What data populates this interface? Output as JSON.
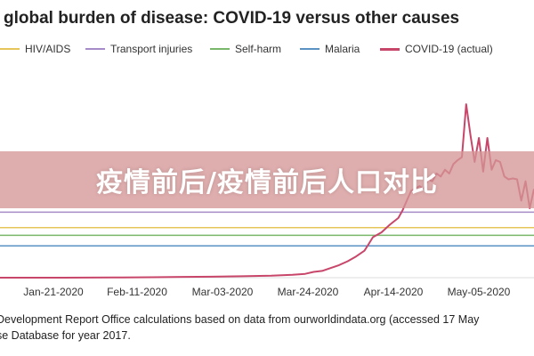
{
  "title": "global burden of disease: COVID-19 versus other causes",
  "legend": [
    {
      "label": "HIV/AIDS",
      "color": "#e6c55a"
    },
    {
      "label": "Transport injuries",
      "color": "#a58bc7"
    },
    {
      "label": "Self-harm",
      "color": "#79b86a"
    },
    {
      "label": "Malaria",
      "color": "#5b92c4"
    },
    {
      "label": "COVID-19 (actual)",
      "color": "#c8466a"
    }
  ],
  "x_ticks": [
    "Jan-21-2020",
    "Feb-11-2020",
    "Mar-03-2020",
    "Mar-24-2020",
    "Apr-14-2020",
    "May-05-2020"
  ],
  "source_lines": [
    "Development Report Office calculations based on data from ourworldindata.org (accessed 17 May",
    "se Database for year 2017."
  ],
  "banner_text": "疫情前后/疫情前后人口对比",
  "chart_data": {
    "type": "line",
    "title": "global burden of disease: COVID-19 versus other causes",
    "x_ticks": [
      "Jan-21-2020",
      "Feb-11-2020",
      "Mar-03-2020",
      "Mar-24-2020",
      "Apr-14-2020",
      "May-05-2020"
    ],
    "x_range_days_from_jan_21": [
      -29,
      97
    ],
    "ylim": [
      0,
      205
    ],
    "grid": false,
    "legend_position": "top",
    "reference_lines": [
      {
        "name": "Transport injuries",
        "value": 68,
        "color": "#a58bc7"
      },
      {
        "name": "HIV/AIDS",
        "value": 52,
        "color": "#e6c55a"
      },
      {
        "name": "Self-harm",
        "value": 44,
        "color": "#79b86a"
      },
      {
        "name": "Malaria",
        "value": 33,
        "color": "#5b92c4"
      }
    ],
    "series": [
      {
        "name": "COVID-19 (actual)",
        "color": "#c8466a",
        "points": [
          [
            -29,
            0
          ],
          [
            -14,
            0
          ],
          [
            0,
            0.3
          ],
          [
            7,
            0.5
          ],
          [
            14,
            0.8
          ],
          [
            21,
            1
          ],
          [
            28,
            1.5
          ],
          [
            35,
            2
          ],
          [
            40,
            3
          ],
          [
            43,
            4
          ],
          [
            45,
            6
          ],
          [
            47,
            7
          ],
          [
            49,
            10
          ],
          [
            51,
            13
          ],
          [
            53,
            17
          ],
          [
            55,
            22
          ],
          [
            57,
            28
          ],
          [
            58,
            35
          ],
          [
            59,
            42
          ],
          [
            61,
            47
          ],
          [
            63,
            55
          ],
          [
            65,
            62
          ],
          [
            66,
            70
          ],
          [
            67,
            80
          ],
          [
            68,
            90
          ],
          [
            70,
            95
          ],
          [
            71,
            92
          ],
          [
            72,
            102
          ],
          [
            73,
            100
          ],
          [
            74,
            108
          ],
          [
            75,
            105
          ],
          [
            76,
            112
          ],
          [
            77,
            108
          ],
          [
            78,
            118
          ],
          [
            79,
            122
          ],
          [
            80,
            125
          ],
          [
            81,
            180
          ],
          [
            82,
            148
          ],
          [
            83,
            120
          ],
          [
            84,
            145
          ],
          [
            85,
            110
          ],
          [
            86,
            145
          ],
          [
            87,
            112
          ],
          [
            88,
            122
          ],
          [
            89,
            120
          ],
          [
            90,
            105
          ],
          [
            91,
            102
          ],
          [
            92,
            103
          ],
          [
            93,
            102
          ],
          [
            94,
            80
          ],
          [
            95,
            100
          ],
          [
            96,
            72
          ],
          [
            97,
            92
          ]
        ]
      }
    ]
  }
}
